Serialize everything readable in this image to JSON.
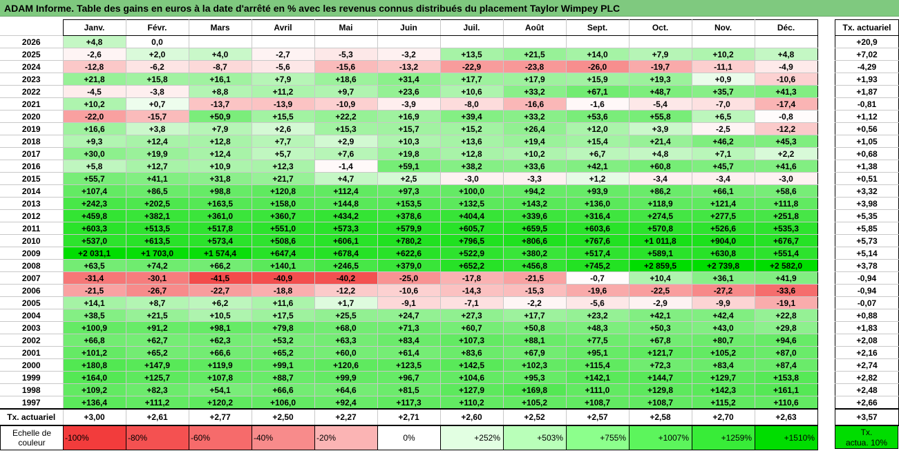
{
  "title": "ADAM Informe. Table des gains en euros à la date d'arrêté en % avec les revenus connus distribués du placement Taylor Wimpey PLC",
  "months": [
    "Janv.",
    "Févr.",
    "Mars",
    "Avril",
    "Mai",
    "Juin",
    "Juil.",
    "Août",
    "Sept.",
    "Oct.",
    "Nov.",
    "Déc."
  ],
  "side_header": "Tx. actuariel",
  "rows": [
    {
      "year": "2026",
      "v": [
        "+4,8",
        "0,0",
        "",
        "",
        "",
        "",
        "",
        "",
        "",
        "",
        "",
        ""
      ],
      "n": [
        4.8,
        0,
        null,
        null,
        null,
        null,
        null,
        null,
        null,
        null,
        null,
        null
      ],
      "tx": "+20,9"
    },
    {
      "year": "2025",
      "v": [
        "-2,6",
        "+2,0",
        "+4,0",
        "-2,7",
        "-5,3",
        "-3,2",
        "+13,5",
        "+21,5",
        "+14,0",
        "+7,9",
        "+10,2",
        "+4,8"
      ],
      "n": [
        -2.6,
        2.0,
        4.0,
        -2.7,
        -5.3,
        -3.2,
        13.5,
        21.5,
        14.0,
        7.9,
        10.2,
        4.8
      ],
      "tx": "+7,02"
    },
    {
      "year": "2024",
      "v": [
        "-12,8",
        "-6,2",
        "-8,7",
        "-5,6",
        "-15,6",
        "-13,2",
        "-22,9",
        "-23,8",
        "-26,0",
        "-19,7",
        "-11,1",
        "-4,9"
      ],
      "n": [
        -12.8,
        -6.2,
        -8.7,
        -5.6,
        -15.6,
        -13.2,
        -22.9,
        -23.8,
        -26.0,
        -19.7,
        -11.1,
        -4.9
      ],
      "tx": "-4,29"
    },
    {
      "year": "2023",
      "v": [
        "+21,8",
        "+15,8",
        "+16,1",
        "+7,9",
        "+18,6",
        "+31,4",
        "+17,7",
        "+17,9",
        "+15,9",
        "+19,3",
        "+0,9",
        "-10,6"
      ],
      "n": [
        21.8,
        15.8,
        16.1,
        7.9,
        18.6,
        31.4,
        17.7,
        17.9,
        15.9,
        19.3,
        0.9,
        -10.6
      ],
      "tx": "+1,93"
    },
    {
      "year": "2022",
      "v": [
        "-4,5",
        "-3,8",
        "+8,8",
        "+11,2",
        "+9,7",
        "+23,6",
        "+10,6",
        "+33,2",
        "+67,1",
        "+48,7",
        "+35,7",
        "+41,3"
      ],
      "n": [
        -4.5,
        -3.8,
        8.8,
        11.2,
        9.7,
        23.6,
        10.6,
        33.2,
        67.1,
        48.7,
        35.7,
        41.3
      ],
      "tx": "+1,87"
    },
    {
      "year": "2021",
      "v": [
        "+10,2",
        "+0,7",
        "-13,7",
        "-13,9",
        "-10,9",
        "-3,9",
        "-8,0",
        "-16,6",
        "-1,6",
        "-5,4",
        "-7,0",
        "-17,4"
      ],
      "n": [
        10.2,
        0.7,
        -13.7,
        -13.9,
        -10.9,
        -3.9,
        -8.0,
        -16.6,
        -1.6,
        -5.4,
        -7.0,
        -17.4
      ],
      "tx": "-0,81"
    },
    {
      "year": "2020",
      "v": [
        "-22,0",
        "-15,7",
        "+50,9",
        "+15,5",
        "+22,2",
        "+16,9",
        "+39,4",
        "+33,2",
        "+53,6",
        "+55,8",
        "+6,5",
        "-0,8"
      ],
      "n": [
        -22.0,
        -15.7,
        50.9,
        15.5,
        22.2,
        16.9,
        39.4,
        33.2,
        53.6,
        55.8,
        6.5,
        -0.8
      ],
      "tx": "+1,12"
    },
    {
      "year": "2019",
      "v": [
        "+16,6",
        "+3,8",
        "+7,9",
        "+2,6",
        "+15,3",
        "+15,7",
        "+15,2",
        "+26,4",
        "+12,0",
        "+3,9",
        "-2,5",
        "-12,2"
      ],
      "n": [
        16.6,
        3.8,
        7.9,
        2.6,
        15.3,
        15.7,
        15.2,
        26.4,
        12.0,
        3.9,
        -2.5,
        -12.2
      ],
      "tx": "+0,56"
    },
    {
      "year": "2018",
      "v": [
        "+9,3",
        "+12,4",
        "+12,8",
        "+7,7",
        "+2,9",
        "+10,3",
        "+13,6",
        "+19,4",
        "+15,4",
        "+21,4",
        "+46,2",
        "+45,3"
      ],
      "n": [
        9.3,
        12.4,
        12.8,
        7.7,
        2.9,
        10.3,
        13.6,
        19.4,
        15.4,
        21.4,
        46.2,
        45.3
      ],
      "tx": "+1,05"
    },
    {
      "year": "2017",
      "v": [
        "+30,0",
        "+19,9",
        "+12,4",
        "+5,7",
        "+7,6",
        "+19,8",
        "+12,8",
        "+10,2",
        "+6,7",
        "+4,8",
        "+7,1",
        "+2,2"
      ],
      "n": [
        30.0,
        19.9,
        12.4,
        5.7,
        7.6,
        19.8,
        12.8,
        10.2,
        6.7,
        4.8,
        7.1,
        2.2
      ],
      "tx": "+0,68"
    },
    {
      "year": "2016",
      "v": [
        "+5,8",
        "+12,7",
        "+10,9",
        "+12,3",
        "-1,4",
        "+59,1",
        "+38,2",
        "+33,6",
        "+42,1",
        "+60,8",
        "+45,7",
        "+41,6"
      ],
      "n": [
        5.8,
        12.7,
        10.9,
        12.3,
        -1.4,
        59.1,
        38.2,
        33.6,
        42.1,
        60.8,
        45.7,
        41.6
      ],
      "tx": "+1,38"
    },
    {
      "year": "2015",
      "v": [
        "+55,7",
        "+41,1",
        "+31,8",
        "+21,7",
        "+4,7",
        "+2,5",
        "-3,0",
        "-3,3",
        "+1,2",
        "-3,4",
        "-3,4",
        "-3,0"
      ],
      "n": [
        55.7,
        41.1,
        31.8,
        21.7,
        4.7,
        2.5,
        -3.0,
        -3.3,
        1.2,
        -3.4,
        -3.4,
        -3.0
      ],
      "tx": "+0,51"
    },
    {
      "year": "2014",
      "v": [
        "+107,4",
        "+86,5",
        "+98,8",
        "+120,8",
        "+112,4",
        "+97,3",
        "+100,0",
        "+94,2",
        "+93,9",
        "+86,2",
        "+66,1",
        "+58,6"
      ],
      "n": [
        107.4,
        86.5,
        98.8,
        120.8,
        112.4,
        97.3,
        100.0,
        94.2,
        93.9,
        86.2,
        66.1,
        58.6
      ],
      "tx": "+3,32"
    },
    {
      "year": "2013",
      "v": [
        "+242,3",
        "+202,5",
        "+163,5",
        "+158,0",
        "+144,8",
        "+153,5",
        "+132,5",
        "+143,2",
        "+136,0",
        "+118,9",
        "+121,4",
        "+111,8"
      ],
      "n": [
        242.3,
        202.5,
        163.5,
        158.0,
        144.8,
        153.5,
        132.5,
        143.2,
        136.0,
        118.9,
        121.4,
        111.8
      ],
      "tx": "+3,98"
    },
    {
      "year": "2012",
      "v": [
        "+459,8",
        "+382,1",
        "+361,0",
        "+360,7",
        "+434,2",
        "+378,6",
        "+404,4",
        "+339,6",
        "+316,4",
        "+274,5",
        "+277,5",
        "+251,8"
      ],
      "n": [
        459.8,
        382.1,
        361.0,
        360.7,
        434.2,
        378.6,
        404.4,
        339.6,
        316.4,
        274.5,
        277.5,
        251.8
      ],
      "tx": "+5,35"
    },
    {
      "year": "2011",
      "v": [
        "+603,3",
        "+513,5",
        "+517,8",
        "+551,0",
        "+573,3",
        "+579,9",
        "+605,7",
        "+659,5",
        "+603,6",
        "+570,8",
        "+526,6",
        "+535,3"
      ],
      "n": [
        603.3,
        513.5,
        517.8,
        551.0,
        573.3,
        579.9,
        605.7,
        659.5,
        603.6,
        570.8,
        526.6,
        535.3
      ],
      "tx": "+5,85"
    },
    {
      "year": "2010",
      "v": [
        "+537,0",
        "+613,5",
        "+573,4",
        "+508,6",
        "+606,1",
        "+780,2",
        "+796,5",
        "+806,6",
        "+767,6",
        "+1 011,8",
        "+904,0",
        "+676,7"
      ],
      "n": [
        537.0,
        613.5,
        573.4,
        508.6,
        606.1,
        780.2,
        796.5,
        806.6,
        767.6,
        1011.8,
        904.0,
        676.7
      ],
      "tx": "+5,73"
    },
    {
      "year": "2009",
      "v": [
        "+2 031,1",
        "+1 703,0",
        "+1 574,4",
        "+647,4",
        "+678,4",
        "+622,6",
        "+522,9",
        "+380,2",
        "+517,4",
        "+589,1",
        "+630,8",
        "+551,4"
      ],
      "n": [
        2031.1,
        1703.0,
        1574.4,
        647.4,
        678.4,
        622.6,
        522.9,
        380.2,
        517.4,
        589.1,
        630.8,
        551.4
      ],
      "tx": "+5,14"
    },
    {
      "year": "2008",
      "v": [
        "+63,5",
        "+74,2",
        "+66,2",
        "+140,1",
        "+246,5",
        "+379,0",
        "+652,2",
        "+456,8",
        "+745,2",
        "+2 859,5",
        "+2 739,8",
        "+2 582,0"
      ],
      "n": [
        63.5,
        74.2,
        66.2,
        140.1,
        246.5,
        379.0,
        652.2,
        456.8,
        745.2,
        2859.5,
        2739.8,
        2582.0
      ],
      "tx": "+3,78"
    },
    {
      "year": "2007",
      "v": [
        "-31,4",
        "-30,1",
        "-41,5",
        "-40,9",
        "-40,2",
        "-25,0",
        "-17,8",
        "-21,5",
        "-0,7",
        "+10,4",
        "+36,1",
        "+41,9"
      ],
      "n": [
        -31.4,
        -30.1,
        -41.5,
        -40.9,
        -40.2,
        -25.0,
        -17.8,
        -21.5,
        -0.7,
        10.4,
        36.1,
        41.9
      ],
      "tx": "-0,94"
    },
    {
      "year": "2006",
      "v": [
        "-21,5",
        "-26,7",
        "-22,7",
        "-18,8",
        "-12,2",
        "-10,6",
        "-14,3",
        "-15,3",
        "-19,6",
        "-22,5",
        "-27,2",
        "-33,6"
      ],
      "n": [
        -21.5,
        -26.7,
        -22.7,
        -18.8,
        -12.2,
        -10.6,
        -14.3,
        -15.3,
        -19.6,
        -22.5,
        -27.2,
        -33.6
      ],
      "tx": "-0,94"
    },
    {
      "year": "2005",
      "v": [
        "+14,1",
        "+8,7",
        "+6,2",
        "+11,6",
        "+1,7",
        "-9,1",
        "-7,1",
        "-2,2",
        "-5,6",
        "-2,9",
        "-9,9",
        "-19,1"
      ],
      "n": [
        14.1,
        8.7,
        6.2,
        11.6,
        1.7,
        -9.1,
        -7.1,
        -2.2,
        -5.6,
        -2.9,
        -9.9,
        -19.1
      ],
      "tx": "-0,07"
    },
    {
      "year": "2004",
      "v": [
        "+38,5",
        "+21,5",
        "+10,5",
        "+17,5",
        "+25,5",
        "+24,7",
        "+27,3",
        "+17,7",
        "+23,2",
        "+42,1",
        "+42,4",
        "+22,8"
      ],
      "n": [
        38.5,
        21.5,
        10.5,
        17.5,
        25.5,
        24.7,
        27.3,
        17.7,
        23.2,
        42.1,
        42.4,
        22.8
      ],
      "tx": "+0,88"
    },
    {
      "year": "2003",
      "v": [
        "+100,9",
        "+91,2",
        "+98,1",
        "+79,8",
        "+68,0",
        "+71,3",
        "+60,7",
        "+50,8",
        "+48,3",
        "+50,3",
        "+43,0",
        "+29,8"
      ],
      "n": [
        100.9,
        91.2,
        98.1,
        79.8,
        68.0,
        71.3,
        60.7,
        50.8,
        48.3,
        50.3,
        43.0,
        29.8
      ],
      "tx": "+1,83"
    },
    {
      "year": "2002",
      "v": [
        "+66,8",
        "+62,7",
        "+62,3",
        "+53,2",
        "+63,3",
        "+83,4",
        "+107,3",
        "+88,1",
        "+77,5",
        "+67,8",
        "+80,7",
        "+94,6"
      ],
      "n": [
        66.8,
        62.7,
        62.3,
        53.2,
        63.3,
        83.4,
        107.3,
        88.1,
        77.5,
        67.8,
        80.7,
        94.6
      ],
      "tx": "+2,08"
    },
    {
      "year": "2001",
      "v": [
        "+101,2",
        "+65,2",
        "+66,6",
        "+65,2",
        "+60,0",
        "+61,4",
        "+83,6",
        "+67,9",
        "+95,1",
        "+121,7",
        "+105,2",
        "+87,0"
      ],
      "n": [
        101.2,
        65.2,
        66.6,
        65.2,
        60.0,
        61.4,
        83.6,
        67.9,
        95.1,
        121.7,
        105.2,
        87.0
      ],
      "tx": "+2,16"
    },
    {
      "year": "2000",
      "v": [
        "+180,8",
        "+147,9",
        "+119,9",
        "+99,1",
        "+120,6",
        "+123,5",
        "+142,5",
        "+102,3",
        "+115,4",
        "+72,3",
        "+83,4",
        "+87,4"
      ],
      "n": [
        180.8,
        147.9,
        119.9,
        99.1,
        120.6,
        123.5,
        142.5,
        102.3,
        115.4,
        72.3,
        83.4,
        87.4
      ],
      "tx": "+2,74"
    },
    {
      "year": "1999",
      "v": [
        "+164,0",
        "+125,7",
        "+107,8",
        "+88,7",
        "+99,9",
        "+96,7",
        "+104,6",
        "+95,3",
        "+142,1",
        "+144,7",
        "+129,7",
        "+153,8"
      ],
      "n": [
        164.0,
        125.7,
        107.8,
        88.7,
        99.9,
        96.7,
        104.6,
        95.3,
        142.1,
        144.7,
        129.7,
        153.8
      ],
      "tx": "+2,82"
    },
    {
      "year": "1998",
      "v": [
        "+109,2",
        "+82,3",
        "+54,1",
        "+66,6",
        "+64,6",
        "+81,5",
        "+127,9",
        "+169,8",
        "+111,0",
        "+129,8",
        "+142,3",
        "+161,1"
      ],
      "n": [
        109.2,
        82.3,
        54.1,
        66.6,
        64.6,
        81.5,
        127.9,
        169.8,
        111.0,
        129.8,
        142.3,
        161.1
      ],
      "tx": "+2,48"
    },
    {
      "year": "1997",
      "v": [
        "+136,4",
        "+111,2",
        "+120,2",
        "+106,0",
        "+92,4",
        "+117,3",
        "+110,2",
        "+105,2",
        "+108,7",
        "+108,7",
        "+115,2",
        "+110,6"
      ],
      "n": [
        136.4,
        111.2,
        120.2,
        106.0,
        92.4,
        117.3,
        110.2,
        105.2,
        108.7,
        108.7,
        115.2,
        110.6
      ],
      "tx": "+2,66"
    }
  ],
  "footer": {
    "label": "Tx. actuariel",
    "values": [
      "+3,00",
      "+2,61",
      "+2,77",
      "+2,50",
      "+2,27",
      "+2,71",
      "+2,60",
      "+2,52",
      "+2,57",
      "+2,58",
      "+2,70",
      "+2,63"
    ],
    "total": "+3,57"
  },
  "scale": {
    "label_line1": "Echelle de",
    "label_line2": "couleur",
    "items": [
      {
        "text": "-100%",
        "color": "#f23c3c",
        "align": "neg"
      },
      {
        "text": "-80%",
        "color": "#f45151",
        "align": "neg"
      },
      {
        "text": "-60%",
        "color": "#f66b6b",
        "align": "neg"
      },
      {
        "text": "-40%",
        "color": "#f88b8b",
        "align": "neg"
      },
      {
        "text": "-20%",
        "color": "#fbb4b4",
        "align": "neg"
      },
      {
        "text": "0%",
        "color": "#ffffff",
        "align": "center"
      },
      {
        "text": "+252%",
        "color": "#e2ffe2",
        "align": "pos"
      },
      {
        "text": "+503%",
        "color": "#b9ffb9",
        "align": "pos"
      },
      {
        "text": "+755%",
        "color": "#8cff8c",
        "align": "pos"
      },
      {
        "text": "+1007%",
        "color": "#5cf55c",
        "align": "pos"
      },
      {
        "text": "+1259%",
        "color": "#38ec38",
        "align": "pos"
      },
      {
        "text": "+1510%",
        "color": "#00dd00",
        "align": "pos"
      }
    ]
  },
  "actua_box": {
    "line1": "Tx.",
    "line2": "actua. 10%"
  }
}
